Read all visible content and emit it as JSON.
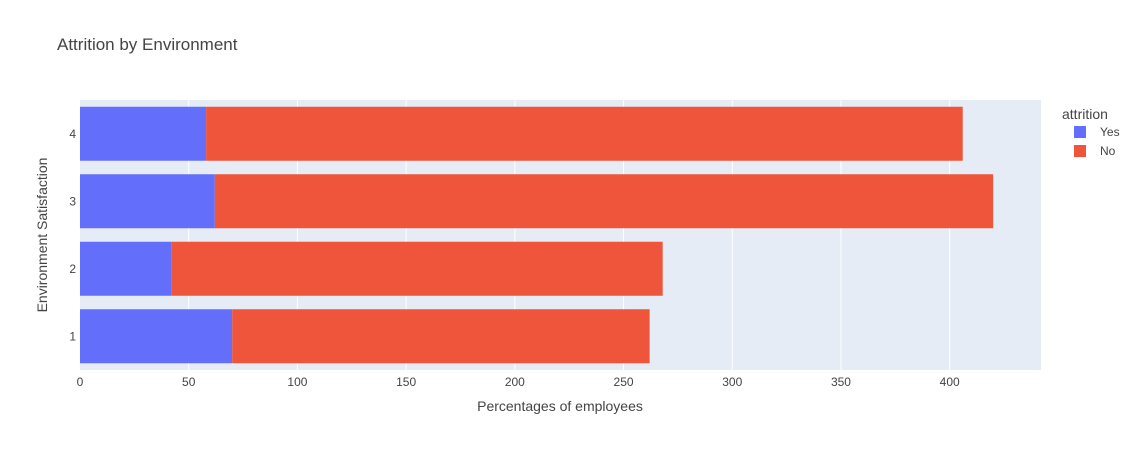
{
  "chart_data": {
    "type": "bar",
    "orientation": "horizontal",
    "barmode": "stack",
    "title": "Attrition by Environment",
    "xlabel": "Percentages of employees",
    "ylabel": "Environment Satisfaction",
    "categories": [
      "1",
      "2",
      "3",
      "4"
    ],
    "xlim": [
      0,
      442
    ],
    "x_ticks": [
      0,
      50,
      100,
      150,
      200,
      250,
      300,
      350,
      400
    ],
    "grid": true,
    "legend": {
      "title": "attrition",
      "position": "top-right"
    },
    "series": [
      {
        "name": "Yes",
        "color": "#636efa",
        "values": [
          70,
          42,
          62,
          58
        ]
      },
      {
        "name": "No",
        "color": "#ef553b",
        "values": [
          192,
          226,
          358,
          348
        ]
      }
    ]
  },
  "colors": {
    "plot_bg": "#e5ecf6",
    "grid": "#ffffff",
    "text": "#444444"
  }
}
